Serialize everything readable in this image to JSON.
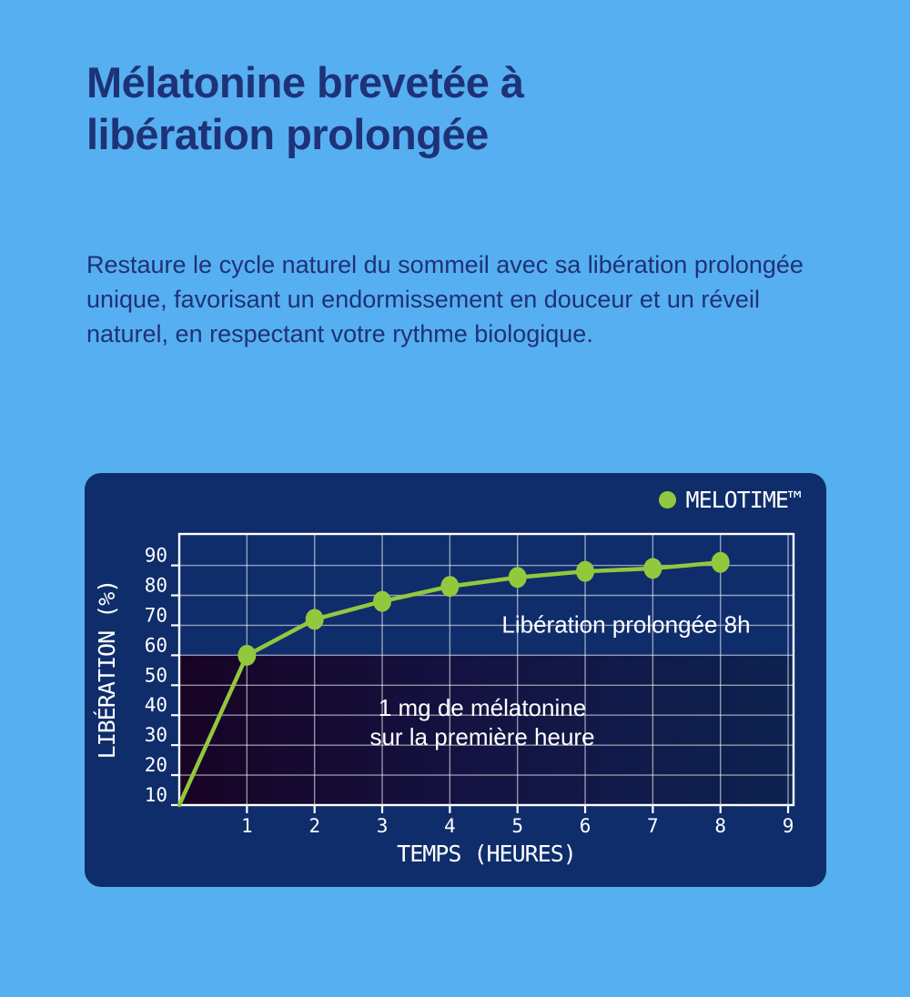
{
  "colors": {
    "background": "#56aff0",
    "panel": "#0f2d6b",
    "text": "#1e3277",
    "accent_green": "#92c83e",
    "grid": "rgba(255,255,255,0.55)",
    "axis": "#ffffff",
    "shade_gradient": [
      "#170324",
      "#141241",
      "#0d2250"
    ]
  },
  "header": {
    "title_lines": [
      "Mélatonine brevetée à",
      "libération prolongée"
    ]
  },
  "intro": {
    "text": "Restaure le cycle naturel du sommeil avec sa libération prolongée unique, favorisant un endormissement en douceur et un réveil naturel, en respectant votre rythme biologique."
  },
  "chart_data": {
    "type": "line",
    "title": "",
    "xlabel": "TEMPS (HEURES)",
    "ylabel": "LIBÉRATION (%)",
    "x": [
      0,
      1,
      2,
      3,
      4,
      5,
      6,
      7,
      8
    ],
    "series": [
      {
        "name": "MELOTIME™",
        "color": "#92c83e",
        "values": [
          10,
          60,
          72,
          78,
          83,
          86,
          88,
          89,
          91
        ]
      }
    ],
    "x_ticks": [
      1,
      2,
      3,
      4,
      5,
      6,
      7,
      8,
      9
    ],
    "y_ticks": [
      10,
      20,
      30,
      40,
      50,
      60,
      70,
      80,
      90
    ],
    "xlim": [
      0,
      9.08
    ],
    "ylim": [
      10,
      100.5
    ],
    "grid": true,
    "legend": {
      "label": "MELOTIME™",
      "position": "top-right"
    },
    "shaded_region": {
      "from_x": 0,
      "to_x": 9.08,
      "from_y": 10,
      "to_y": 60,
      "meaning": "1 mg de mélatonine sur la première heure"
    },
    "annotations": [
      {
        "text": "Libération prolongée 8h"
      },
      {
        "lines": [
          "1 mg de mélatonine",
          "sur la première heure"
        ]
      }
    ]
  }
}
